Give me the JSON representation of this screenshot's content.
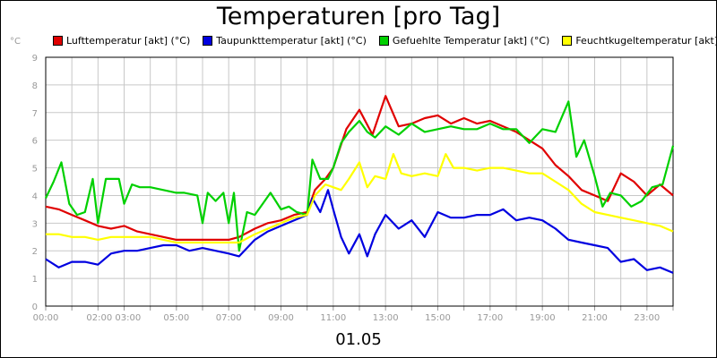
{
  "chart_data": {
    "type": "line",
    "title": "Temperaturen [pro Tag]",
    "ylabel": "°C",
    "xlabel": "01.05",
    "ylim": [
      0,
      9
    ],
    "xlim": [
      0,
      24
    ],
    "y_ticks": [
      "0",
      "1",
      "2",
      "3",
      "4",
      "5",
      "6",
      "7",
      "8",
      "9"
    ],
    "x_ticks": [
      {
        "hour": 0,
        "label": "00:00"
      },
      {
        "hour": 2.6,
        "label": "02:00 03:00"
      },
      {
        "hour": 5,
        "label": "05:00"
      },
      {
        "hour": 7,
        "label": "07:00"
      },
      {
        "hour": 9,
        "label": "09:00"
      },
      {
        "hour": 11,
        "label": "11:00"
      },
      {
        "hour": 13,
        "label": "13:00"
      },
      {
        "hour": 15,
        "label": "15:00"
      },
      {
        "hour": 17,
        "label": "17:00"
      },
      {
        "hour": 19,
        "label": "19:00"
      },
      {
        "hour": 21,
        "label": "21:00"
      },
      {
        "hour": 23,
        "label": "23:00"
      }
    ],
    "grid": true,
    "legend_position": "top",
    "series": [
      {
        "name": "Lufttemperatur [akt] (°C)",
        "color": "#e00000",
        "points": [
          [
            0,
            3.6
          ],
          [
            0.5,
            3.5
          ],
          [
            1,
            3.3
          ],
          [
            1.5,
            3.1
          ],
          [
            2,
            2.9
          ],
          [
            2.5,
            2.8
          ],
          [
            3,
            2.9
          ],
          [
            3.5,
            2.7
          ],
          [
            4,
            2.6
          ],
          [
            4.5,
            2.5
          ],
          [
            5,
            2.4
          ],
          [
            5.5,
            2.4
          ],
          [
            6,
            2.4
          ],
          [
            6.5,
            2.4
          ],
          [
            7,
            2.4
          ],
          [
            7.4,
            2.5
          ],
          [
            8,
            2.8
          ],
          [
            8.5,
            3.0
          ],
          [
            9,
            3.1
          ],
          [
            9.5,
            3.3
          ],
          [
            10,
            3.4
          ],
          [
            10.3,
            4.2
          ],
          [
            10.7,
            4.6
          ],
          [
            11,
            5.0
          ],
          [
            11.5,
            6.4
          ],
          [
            12,
            7.1
          ],
          [
            12.5,
            6.2
          ],
          [
            13,
            7.6
          ],
          [
            13.5,
            6.5
          ],
          [
            14,
            6.6
          ],
          [
            14.5,
            6.8
          ],
          [
            15,
            6.9
          ],
          [
            15.5,
            6.6
          ],
          [
            16,
            6.8
          ],
          [
            16.5,
            6.6
          ],
          [
            17,
            6.7
          ],
          [
            17.5,
            6.5
          ],
          [
            18,
            6.3
          ],
          [
            18.5,
            6.0
          ],
          [
            19,
            5.7
          ],
          [
            19.5,
            5.1
          ],
          [
            20,
            4.7
          ],
          [
            20.5,
            4.2
          ],
          [
            21,
            4.0
          ],
          [
            21.5,
            3.8
          ],
          [
            22,
            4.8
          ],
          [
            22.5,
            4.5
          ],
          [
            23,
            4.0
          ],
          [
            23.5,
            4.4
          ],
          [
            24,
            4.0
          ]
        ]
      },
      {
        "name": "Taupunkttemperatur [akt] (°C)",
        "color": "#0000e0",
        "points": [
          [
            0,
            1.7
          ],
          [
            0.5,
            1.4
          ],
          [
            1,
            1.6
          ],
          [
            1.5,
            1.6
          ],
          [
            2,
            1.5
          ],
          [
            2.5,
            1.9
          ],
          [
            3,
            2.0
          ],
          [
            3.5,
            2.0
          ],
          [
            4,
            2.1
          ],
          [
            4.5,
            2.2
          ],
          [
            5,
            2.2
          ],
          [
            5.5,
            2.0
          ],
          [
            6,
            2.1
          ],
          [
            6.5,
            2.0
          ],
          [
            7,
            1.9
          ],
          [
            7.4,
            1.8
          ],
          [
            8,
            2.4
          ],
          [
            8.5,
            2.7
          ],
          [
            9,
            2.9
          ],
          [
            9.5,
            3.1
          ],
          [
            10,
            3.3
          ],
          [
            10.2,
            3.9
          ],
          [
            10.5,
            3.4
          ],
          [
            10.8,
            4.2
          ],
          [
            11,
            3.5
          ],
          [
            11.3,
            2.5
          ],
          [
            11.6,
            1.9
          ],
          [
            12,
            2.6
          ],
          [
            12.3,
            1.8
          ],
          [
            12.6,
            2.6
          ],
          [
            13,
            3.3
          ],
          [
            13.5,
            2.8
          ],
          [
            14,
            3.1
          ],
          [
            14.5,
            2.5
          ],
          [
            15,
            3.4
          ],
          [
            15.5,
            3.2
          ],
          [
            16,
            3.2
          ],
          [
            16.5,
            3.3
          ],
          [
            17,
            3.3
          ],
          [
            17.5,
            3.5
          ],
          [
            18,
            3.1
          ],
          [
            18.5,
            3.2
          ],
          [
            19,
            3.1
          ],
          [
            19.5,
            2.8
          ],
          [
            20,
            2.4
          ],
          [
            20.5,
            2.3
          ],
          [
            21,
            2.2
          ],
          [
            21.5,
            2.1
          ],
          [
            22,
            1.6
          ],
          [
            22.5,
            1.7
          ],
          [
            23,
            1.3
          ],
          [
            23.5,
            1.4
          ],
          [
            24,
            1.2
          ]
        ]
      },
      {
        "name": "Gefuehlte Temperatur [akt] (°C)",
        "color": "#00d000",
        "points": [
          [
            0,
            3.9
          ],
          [
            0.3,
            4.5
          ],
          [
            0.6,
            5.2
          ],
          [
            0.9,
            3.7
          ],
          [
            1.2,
            3.3
          ],
          [
            1.5,
            3.4
          ],
          [
            1.8,
            4.6
          ],
          [
            2,
            3.0
          ],
          [
            2.3,
            4.6
          ],
          [
            2.8,
            4.6
          ],
          [
            3,
            3.7
          ],
          [
            3.3,
            4.4
          ],
          [
            3.6,
            4.3
          ],
          [
            4,
            4.3
          ],
          [
            4.5,
            4.2
          ],
          [
            5,
            4.1
          ],
          [
            5.3,
            4.1
          ],
          [
            5.8,
            4.0
          ],
          [
            6,
            3.0
          ],
          [
            6.2,
            4.1
          ],
          [
            6.5,
            3.8
          ],
          [
            6.8,
            4.1
          ],
          [
            7,
            3.0
          ],
          [
            7.2,
            4.1
          ],
          [
            7.4,
            2.0
          ],
          [
            7.7,
            3.4
          ],
          [
            8,
            3.3
          ],
          [
            8.3,
            3.7
          ],
          [
            8.6,
            4.1
          ],
          [
            9,
            3.5
          ],
          [
            9.3,
            3.6
          ],
          [
            9.6,
            3.4
          ],
          [
            10,
            3.3
          ],
          [
            10.2,
            5.3
          ],
          [
            10.5,
            4.6
          ],
          [
            10.8,
            4.6
          ],
          [
            11,
            5.0
          ],
          [
            11.3,
            5.9
          ],
          [
            11.6,
            6.3
          ],
          [
            12,
            6.7
          ],
          [
            12.3,
            6.3
          ],
          [
            12.6,
            6.1
          ],
          [
            13,
            6.5
          ],
          [
            13.5,
            6.2
          ],
          [
            14,
            6.6
          ],
          [
            14.5,
            6.3
          ],
          [
            15,
            6.4
          ],
          [
            15.5,
            6.5
          ],
          [
            16,
            6.4
          ],
          [
            16.5,
            6.4
          ],
          [
            17,
            6.6
          ],
          [
            17.5,
            6.4
          ],
          [
            18,
            6.4
          ],
          [
            18.5,
            5.9
          ],
          [
            19,
            6.4
          ],
          [
            19.5,
            6.3
          ],
          [
            20,
            7.4
          ],
          [
            20.3,
            5.4
          ],
          [
            20.6,
            6.0
          ],
          [
            21,
            4.7
          ],
          [
            21.3,
            3.6
          ],
          [
            21.6,
            4.1
          ],
          [
            22,
            4.0
          ],
          [
            22.4,
            3.6
          ],
          [
            22.8,
            3.8
          ],
          [
            23.2,
            4.3
          ],
          [
            23.6,
            4.4
          ],
          [
            24,
            5.8
          ]
        ]
      },
      {
        "name": "Feuchtkugeltemperatur [akt] (°C)",
        "color": "#ffff00",
        "points": [
          [
            0,
            2.6
          ],
          [
            0.5,
            2.6
          ],
          [
            1,
            2.5
          ],
          [
            1.5,
            2.5
          ],
          [
            2,
            2.4
          ],
          [
            2.5,
            2.5
          ],
          [
            3,
            2.5
          ],
          [
            3.5,
            2.5
          ],
          [
            4,
            2.5
          ],
          [
            4.5,
            2.4
          ],
          [
            5,
            2.3
          ],
          [
            5.5,
            2.3
          ],
          [
            6,
            2.3
          ],
          [
            6.5,
            2.3
          ],
          [
            7,
            2.3
          ],
          [
            7.4,
            2.3
          ],
          [
            8,
            2.6
          ],
          [
            8.5,
            2.8
          ],
          [
            9,
            3.0
          ],
          [
            9.5,
            3.2
          ],
          [
            10,
            3.3
          ],
          [
            10.3,
            4.0
          ],
          [
            10.7,
            4.4
          ],
          [
            11,
            4.3
          ],
          [
            11.3,
            4.2
          ],
          [
            11.6,
            4.6
          ],
          [
            12,
            5.2
          ],
          [
            12.3,
            4.3
          ],
          [
            12.6,
            4.7
          ],
          [
            13,
            4.6
          ],
          [
            13.3,
            5.5
          ],
          [
            13.6,
            4.8
          ],
          [
            14,
            4.7
          ],
          [
            14.5,
            4.8
          ],
          [
            15,
            4.7
          ],
          [
            15.3,
            5.5
          ],
          [
            15.6,
            5.0
          ],
          [
            16,
            5.0
          ],
          [
            16.5,
            4.9
          ],
          [
            17,
            5.0
          ],
          [
            17.5,
            5.0
          ],
          [
            18,
            4.9
          ],
          [
            18.5,
            4.8
          ],
          [
            19,
            4.8
          ],
          [
            19.5,
            4.5
          ],
          [
            20,
            4.2
          ],
          [
            20.5,
            3.7
          ],
          [
            21,
            3.4
          ],
          [
            21.5,
            3.3
          ],
          [
            22,
            3.2
          ],
          [
            22.5,
            3.1
          ],
          [
            23,
            3.0
          ],
          [
            23.5,
            2.9
          ],
          [
            24,
            2.7
          ]
        ]
      }
    ]
  }
}
